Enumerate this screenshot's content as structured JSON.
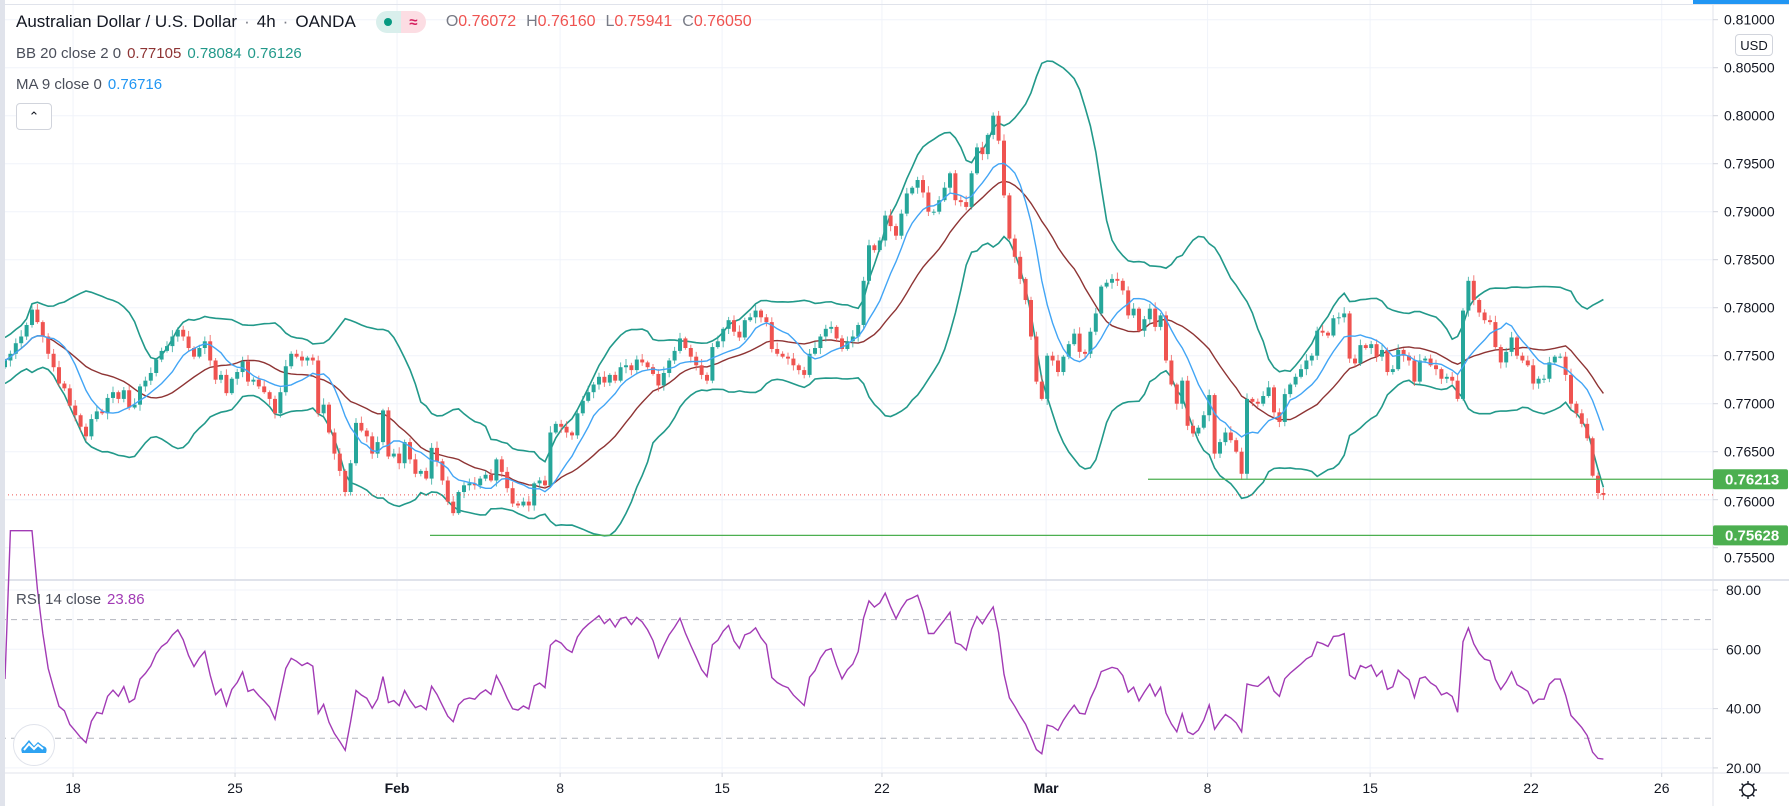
{
  "header": {
    "title": "Australian Dollar / U.S. Dollar",
    "separator": "·",
    "interval": "4h",
    "exchange": "OANDA",
    "status_icons": [
      "market-open-dot-icon",
      "delayed-data-icon"
    ],
    "delayed_glyph": "≈",
    "ohlc": {
      "o_label": "O",
      "o": "0.76072",
      "h_label": "H",
      "h": "0.76160",
      "l_label": "L",
      "l": "0.75941",
      "c_label": "C",
      "c": "0.76050"
    }
  },
  "indicators": {
    "bb": {
      "label": "BB 20 close 2 0",
      "basis": "0.77105",
      "upper": "0.78084",
      "lower": "0.76126"
    },
    "ma": {
      "label": "MA 9 close 0",
      "value": "0.76716"
    },
    "rsi": {
      "label": "RSI 14 close",
      "value": "23.86"
    }
  },
  "price_axis": {
    "currency": "USD"
  },
  "colors": {
    "up": "#26a69a",
    "down": "#ef5350",
    "bb_band": "#22998a",
    "bb_basis": "#8e3434",
    "ma": "#42a5f5",
    "rsi": "#a23bb5",
    "level": "#4caf50",
    "grid": "#f0f3fa",
    "last_price": "#ef5350"
  },
  "chart_data": {
    "type": "candlestick",
    "timeframe": "4h",
    "price_ticks": [
      "0.81000",
      "0.80500",
      "0.80000",
      "0.79500",
      "0.79000",
      "0.78500",
      "0.78000",
      "0.77500",
      "0.77000",
      "0.76500",
      "0.76000",
      "0.75500"
    ],
    "price_range": [
      0.753,
      0.8115
    ],
    "time_ticks": [
      "18",
      "25",
      "Feb",
      "8",
      "15",
      "22",
      "Mar",
      "8",
      "15",
      "22",
      "26"
    ],
    "bold_time_ticks": [
      "Feb",
      "Mar"
    ],
    "horizontal_levels": [
      "0.76213",
      "0.75628"
    ],
    "last_price": 0.7605,
    "close": [
      0.7745,
      0.7752,
      0.7763,
      0.777,
      0.7782,
      0.7798,
      0.7785,
      0.777,
      0.7752,
      0.7738,
      0.7721,
      0.7716,
      0.7698,
      0.7688,
      0.7676,
      0.7666,
      0.7684,
      0.7692,
      0.769,
      0.7706,
      0.7712,
      0.7705,
      0.7714,
      0.7696,
      0.7699,
      0.7718,
      0.7724,
      0.7732,
      0.7746,
      0.7755,
      0.776,
      0.777,
      0.7777,
      0.777,
      0.7758,
      0.7749,
      0.7758,
      0.7765,
      0.7745,
      0.7725,
      0.773,
      0.7711,
      0.7726,
      0.7733,
      0.7744,
      0.7723,
      0.7725,
      0.7718,
      0.7712,
      0.7705,
      0.769,
      0.7712,
      0.7739,
      0.7752,
      0.7749,
      0.7745,
      0.7748,
      0.7745,
      0.769,
      0.7699,
      0.767,
      0.7648,
      0.763,
      0.7608,
      0.7638,
      0.768,
      0.7672,
      0.7666,
      0.7648,
      0.766,
      0.7693,
      0.7645,
      0.7648,
      0.7638,
      0.766,
      0.7642,
      0.7627,
      0.763,
      0.7622,
      0.7654,
      0.764,
      0.762,
      0.7598,
      0.7586,
      0.7608,
      0.7615,
      0.7617,
      0.7615,
      0.7622,
      0.7626,
      0.762,
      0.7642,
      0.7629,
      0.7612,
      0.7596,
      0.7594,
      0.7598,
      0.7594,
      0.7617,
      0.762,
      0.7615,
      0.767,
      0.7679,
      0.7676,
      0.767,
      0.7667,
      0.769,
      0.7703,
      0.7712,
      0.772,
      0.7728,
      0.7722,
      0.773,
      0.7724,
      0.7738,
      0.774,
      0.7735,
      0.7746,
      0.7743,
      0.7738,
      0.7731,
      0.7719,
      0.7732,
      0.7745,
      0.7755,
      0.7768,
      0.7758,
      0.7749,
      0.774,
      0.773,
      0.7724,
      0.7759,
      0.7765,
      0.7778,
      0.7787,
      0.7775,
      0.7769,
      0.7787,
      0.779,
      0.7797,
      0.779,
      0.7785,
      0.7757,
      0.7752,
      0.7749,
      0.7747,
      0.774,
      0.7735,
      0.773,
      0.7752,
      0.7758,
      0.777,
      0.7778,
      0.778,
      0.7768,
      0.7757,
      0.7765,
      0.777,
      0.7782,
      0.7828,
      0.7865,
      0.786,
      0.787,
      0.7896,
      0.7885,
      0.7875,
      0.7898,
      0.7919,
      0.7925,
      0.7933,
      0.792,
      0.79,
      0.79,
      0.7912,
      0.7925,
      0.794,
      0.7912,
      0.791,
      0.7905,
      0.794,
      0.7967,
      0.796,
      0.798,
      0.8,
      0.7974,
      0.7917,
      0.7872,
      0.7853,
      0.783,
      0.7808,
      0.777,
      0.7723,
      0.7705,
      0.775,
      0.7745,
      0.7733,
      0.7749,
      0.7762,
      0.7773,
      0.7754,
      0.7752,
      0.7775,
      0.7794,
      0.7822,
      0.7826,
      0.783,
      0.7828,
      0.7818,
      0.7792,
      0.7799,
      0.7776,
      0.7788,
      0.7799,
      0.778,
      0.7792,
      0.7745,
      0.772,
      0.77,
      0.7724,
      0.7677,
      0.7669,
      0.7675,
      0.7688,
      0.7709,
      0.7648,
      0.766,
      0.767,
      0.7662,
      0.765,
      0.7627,
      0.7705,
      0.7702,
      0.77,
      0.7708,
      0.7717,
      0.7691,
      0.7681,
      0.771,
      0.772,
      0.7728,
      0.7736,
      0.7745,
      0.775,
      0.7776,
      0.7774,
      0.7771,
      0.7789,
      0.779,
      0.7794,
      0.7747,
      0.7742,
      0.7761,
      0.7758,
      0.7762,
      0.7749,
      0.7756,
      0.7733,
      0.7736,
      0.7756,
      0.775,
      0.7745,
      0.7723,
      0.7745,
      0.7747,
      0.774,
      0.7736,
      0.7726,
      0.7728,
      0.7724,
      0.7705,
      0.7797,
      0.7828,
      0.7808,
      0.7795,
      0.7787,
      0.7785,
      0.7759,
      0.7743,
      0.7754,
      0.7769,
      0.775,
      0.7745,
      0.774,
      0.7721,
      0.7726,
      0.7726,
      0.7743,
      0.7749,
      0.7749,
      0.773,
      0.77,
      0.769,
      0.7679,
      0.7664,
      0.7625,
      0.7607,
      0.7605
    ],
    "indicators": [
      "BB 20 close 2",
      "MA 9 close",
      "RSI 14 close"
    ],
    "rsi": {
      "ticks": [
        "80.00",
        "60.00",
        "40.00",
        "20.00"
      ],
      "bands": [
        70,
        30
      ],
      "range": [
        16.5,
        83.4
      ]
    }
  }
}
